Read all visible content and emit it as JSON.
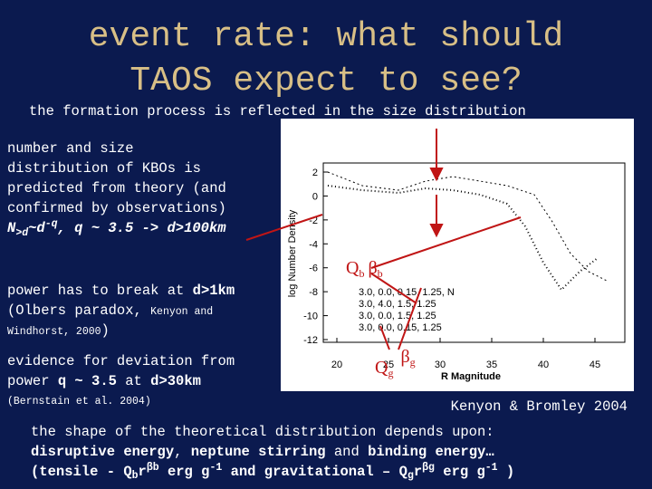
{
  "title": {
    "lines": [
      "event rate: what should",
      "TAOS expect to see?"
    ]
  },
  "subtitle": "the formation process is reflected in the size distribution",
  "paragraphs": [
    {
      "lines": [
        [
          "number and size"
        ],
        [
          "distribution of KBOs is"
        ],
        [
          "predicted from theory (and"
        ],
        [
          "confirmed by observations)"
        ],
        [
          "N",
          ">d",
          "~d",
          "-q",
          ", q ~ 3.5 -> d>100km"
        ]
      ]
    },
    {
      "lines": [
        [
          "power has to break at ",
          "d>1km"
        ],
        [
          "(Olbers paradox, ",
          "Kenyon and"
        ],
        [
          "Windhorst, 2000",
          ")"
        ]
      ]
    },
    {
      "lines": [
        [
          "evidence for deviation from"
        ],
        [
          "power ",
          "q ~ 3.5",
          " at ",
          "d>30km"
        ],
        [
          "(Bernstain et al. 2004)"
        ]
      ]
    }
  ],
  "figure": {
    "y_label": "log Number Density",
    "x_label": "R Magnitude",
    "xticks": [
      20,
      25,
      30,
      35,
      40,
      45
    ],
    "yticks": [
      2,
      0,
      -2,
      -4,
      -6,
      -8,
      -10,
      -12
    ],
    "legend": [
      "3.0, 0.0, 0.15, 1.25, N",
      "3.0, 4.0, 1.5, 1.25",
      "3.0, 0.0, 1.5, 1.25",
      "3.0, 0.0, 0.15, 1.25"
    ],
    "annotations": [
      [
        "Q",
        "b",
        "β",
        "b"
      ],
      [
        "Q",
        "g",
        "β",
        "g"
      ]
    ],
    "caption": "Kenyon & Bromley 2004"
  },
  "footer": {
    "lines": [
      [
        "the shape of the theoretical distribution depends upon:"
      ],
      [
        "disruptive energy",
        ", ",
        "neptune stirring",
        " and ",
        "binding energy…"
      ],
      [
        "(tensile - Q",
        "b",
        "r",
        "βb",
        " erg g",
        "-1",
        " and ",
        "gravitational",
        " – Q",
        "g",
        "r",
        "βg",
        " erg g",
        "-1",
        " )"
      ]
    ]
  }
}
